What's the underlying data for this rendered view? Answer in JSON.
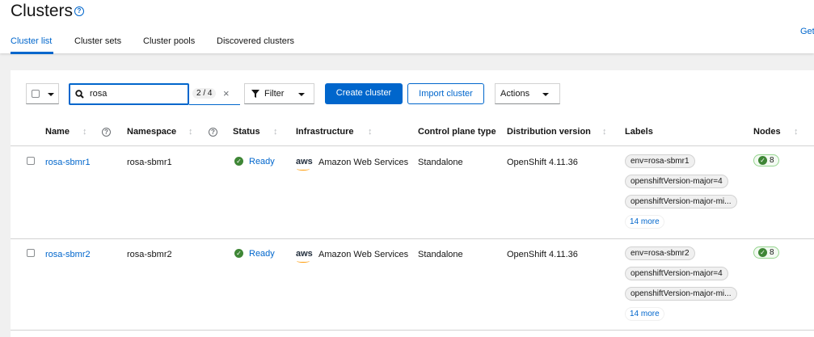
{
  "page": {
    "title": "Clusters",
    "get_link": "Get"
  },
  "tabs": [
    {
      "label": "Cluster list",
      "active": true
    },
    {
      "label": "Cluster sets"
    },
    {
      "label": "Cluster pools"
    },
    {
      "label": "Discovered clusters"
    }
  ],
  "toolbar": {
    "search_value": "rosa",
    "match_count": "2 / 4",
    "filter_label": "Filter",
    "create_label": "Create cluster",
    "import_label": "Import cluster",
    "actions_label": "Actions"
  },
  "columns": [
    "Name",
    "Namespace",
    "Status",
    "Infrastructure",
    "Control plane type",
    "Distribution version",
    "Labels",
    "Nodes"
  ],
  "rows": [
    {
      "name": "rosa-sbmr1",
      "namespace": "rosa-sbmr1",
      "status": "Ready",
      "infra_logo": "aws",
      "infra": "Amazon Web Services",
      "control_plane": "Standalone",
      "version": "OpenShift 4.11.36",
      "labels": [
        "env=rosa-sbmr1",
        "openshiftVersion-major=4",
        "openshiftVersion-major-mi..."
      ],
      "more": "14 more",
      "nodes": "8"
    },
    {
      "name": "rosa-sbmr2",
      "namespace": "rosa-sbmr2",
      "status": "Ready",
      "infra_logo": "aws",
      "infra": "Amazon Web Services",
      "control_plane": "Standalone",
      "version": "OpenShift 4.11.36",
      "labels": [
        "env=rosa-sbmr2",
        "openshiftVersion-major=4",
        "openshiftVersion-major-mi..."
      ],
      "more": "14 more",
      "nodes": "8"
    }
  ],
  "colors": {
    "accent": "#0066cc",
    "success": "#3e8635"
  }
}
